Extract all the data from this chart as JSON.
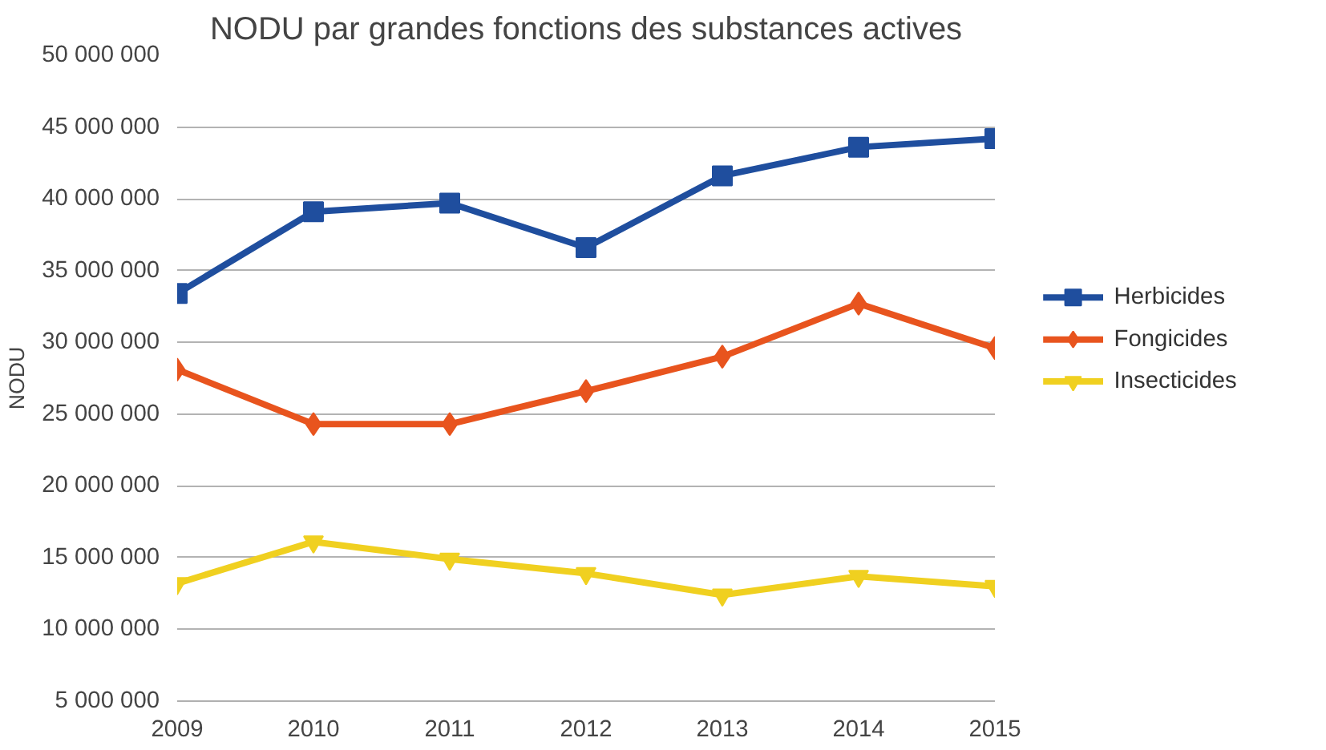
{
  "chart_data": {
    "type": "line",
    "title": "NODU par grandes fonctions des substances actives",
    "ylabel": "NODU",
    "x": [
      2009,
      2010,
      2011,
      2012,
      2013,
      2014,
      2015
    ],
    "series": [
      {
        "name": "Herbicides",
        "color": "#1f4e9e",
        "marker": "square",
        "values": [
          33400000,
          39100000,
          39700000,
          36600000,
          41600000,
          43600000,
          44200000
        ]
      },
      {
        "name": "Fongicides",
        "color": "#e8541e",
        "marker": "diamond",
        "values": [
          28100000,
          24300000,
          24300000,
          26600000,
          29000000,
          32700000,
          29600000
        ]
      },
      {
        "name": "Insecticides",
        "color": "#f0d020",
        "marker": "triangle",
        "values": [
          13200000,
          16100000,
          14900000,
          13900000,
          12400000,
          13700000,
          13000000
        ]
      }
    ],
    "xlim": [
      2009,
      2015
    ],
    "xticks": [
      2009,
      2010,
      2011,
      2012,
      2013,
      2014,
      2015
    ],
    "ylim": [
      5000000,
      50000000
    ],
    "yticks": [
      {
        "value": 5000000,
        "label": "5 000 000"
      },
      {
        "value": 10000000,
        "label": "10 000 000"
      },
      {
        "value": 15000000,
        "label": "15 000 000"
      },
      {
        "value": 20000000,
        "label": "20 000 000"
      },
      {
        "value": 25000000,
        "label": "25 000 000"
      },
      {
        "value": 30000000,
        "label": "30 000 000"
      },
      {
        "value": 35000000,
        "label": "35 000 000"
      },
      {
        "value": 40000000,
        "label": "40 000 000"
      },
      {
        "value": 45000000,
        "label": "45 000 000"
      },
      {
        "value": 50000000,
        "label": "50 000 000"
      }
    ],
    "grid": "y",
    "legend": "right",
    "line_style": "solid"
  }
}
